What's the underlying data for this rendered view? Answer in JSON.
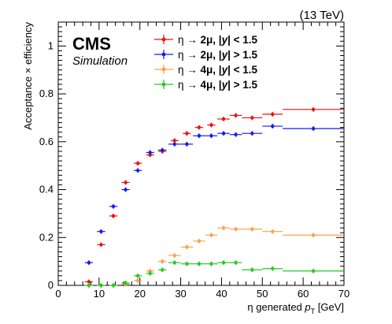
{
  "header": {
    "energy": "(13 TeV)",
    "experiment": "CMS",
    "tag": "Simulation"
  },
  "colors": {
    "eta_2mu_central": "#ee1111",
    "eta_2mu_forward": "#1a1aee",
    "eta_4mu_central": "#ffa04d",
    "eta_4mu_forward": "#22cc22"
  },
  "chart_data": {
    "type": "scatter",
    "title": "",
    "xlabel": "η generated p_T [GeV]",
    "ylabel": "Acceptance × efficiency",
    "xlim": [
      0,
      70
    ],
    "ylim": [
      0,
      1.1
    ],
    "x_ticks": [
      "0",
      "10",
      "20",
      "30",
      "40",
      "50",
      "60",
      "70"
    ],
    "y_ticks": [
      "0",
      "0.2",
      "0.4",
      "0.6",
      "0.8",
      "1"
    ],
    "grid": false,
    "legend_position": "top-right",
    "series": [
      {
        "name": "η → 2μ, |y| < 1.5",
        "legend": {
          "pre": "η → ",
          "mid": "2μ, |",
          "y": "y",
          "post": "| < 1.5"
        },
        "color_key": "eta_2mu_central",
        "points": [
          {
            "x": 7.5,
            "xerr": 1.0,
            "y": 0.015
          },
          {
            "x": 10.5,
            "xerr": 1.0,
            "y": 0.17
          },
          {
            "x": 13.5,
            "xerr": 1.0,
            "y": 0.29
          },
          {
            "x": 16.5,
            "xerr": 1.0,
            "y": 0.43
          },
          {
            "x": 19.5,
            "xerr": 1.0,
            "y": 0.51
          },
          {
            "x": 22.5,
            "xerr": 1.0,
            "y": 0.545
          },
          {
            "x": 25.5,
            "xerr": 1.0,
            "y": 0.56
          },
          {
            "x": 28.5,
            "xerr": 1.0,
            "y": 0.605
          },
          {
            "x": 31.5,
            "xerr": 1.0,
            "y": 0.635
          },
          {
            "x": 34.5,
            "xerr": 1.0,
            "y": 0.66
          },
          {
            "x": 37.5,
            "xerr": 1.0,
            "y": 0.67
          },
          {
            "x": 40.5,
            "xerr": 1.5,
            "y": 0.695
          },
          {
            "x": 43.5,
            "xerr": 1.5,
            "y": 0.71
          },
          {
            "x": 47.5,
            "xerr": 2.5,
            "y": 0.7
          },
          {
            "x": 52.5,
            "xerr": 2.5,
            "y": 0.715
          },
          {
            "x": 62.5,
            "xerr": 7.5,
            "y": 0.735
          }
        ]
      },
      {
        "name": "η → 2μ, |y| > 1.5",
        "legend": {
          "pre": "η → ",
          "mid": "2μ, |",
          "y": "y",
          "post": "| > 1.5"
        },
        "color_key": "eta_2mu_forward",
        "points": [
          {
            "x": 7.5,
            "xerr": 1.0,
            "y": 0.095
          },
          {
            "x": 10.5,
            "xerr": 1.0,
            "y": 0.225
          },
          {
            "x": 13.5,
            "xerr": 1.0,
            "y": 0.33
          },
          {
            "x": 16.5,
            "xerr": 1.0,
            "y": 0.4
          },
          {
            "x": 19.5,
            "xerr": 1.0,
            "y": 0.48
          },
          {
            "x": 22.5,
            "xerr": 1.0,
            "y": 0.555
          },
          {
            "x": 25.5,
            "xerr": 1.0,
            "y": 0.565
          },
          {
            "x": 28.5,
            "xerr": 1.5,
            "y": 0.59
          },
          {
            "x": 31.5,
            "xerr": 1.5,
            "y": 0.59
          },
          {
            "x": 34.5,
            "xerr": 1.5,
            "y": 0.625
          },
          {
            "x": 37.5,
            "xerr": 1.5,
            "y": 0.625
          },
          {
            "x": 40.5,
            "xerr": 1.5,
            "y": 0.635
          },
          {
            "x": 43.5,
            "xerr": 1.5,
            "y": 0.63
          },
          {
            "x": 47.5,
            "xerr": 2.5,
            "y": 0.635
          },
          {
            "x": 52.5,
            "xerr": 2.5,
            "y": 0.665
          },
          {
            "x": 62.5,
            "xerr": 7.5,
            "y": 0.655
          }
        ]
      },
      {
        "name": "η → 4μ, |y| < 1.5",
        "legend": {
          "pre": "η → ",
          "mid": "4μ, |",
          "y": "y",
          "post": "| < 1.5"
        },
        "color_key": "eta_4mu_central",
        "points": [
          {
            "x": 7.5,
            "xerr": 1.0,
            "y": 0.0
          },
          {
            "x": 10.5,
            "xerr": 1.0,
            "y": 0.0
          },
          {
            "x": 13.5,
            "xerr": 1.0,
            "y": 0.0
          },
          {
            "x": 16.5,
            "xerr": 1.0,
            "y": 0.005
          },
          {
            "x": 19.5,
            "xerr": 1.0,
            "y": 0.02
          },
          {
            "x": 22.5,
            "xerr": 1.0,
            "y": 0.06
          },
          {
            "x": 25.5,
            "xerr": 1.0,
            "y": 0.1
          },
          {
            "x": 28.5,
            "xerr": 1.5,
            "y": 0.125
          },
          {
            "x": 31.5,
            "xerr": 1.5,
            "y": 0.16
          },
          {
            "x": 34.5,
            "xerr": 1.5,
            "y": 0.185
          },
          {
            "x": 37.5,
            "xerr": 1.5,
            "y": 0.21
          },
          {
            "x": 40.5,
            "xerr": 1.5,
            "y": 0.24
          },
          {
            "x": 43.5,
            "xerr": 1.5,
            "y": 0.235
          },
          {
            "x": 47.5,
            "xerr": 2.5,
            "y": 0.235
          },
          {
            "x": 52.5,
            "xerr": 2.5,
            "y": 0.225
          },
          {
            "x": 62.5,
            "xerr": 7.5,
            "y": 0.21
          }
        ]
      },
      {
        "name": "η → 4μ, |y| > 1.5",
        "legend": {
          "pre": "η → ",
          "mid": "4μ, |",
          "y": "y",
          "post": "| > 1.5"
        },
        "color_key": "eta_4mu_forward",
        "points": [
          {
            "x": 7.5,
            "xerr": 1.0,
            "y": 0.0
          },
          {
            "x": 10.5,
            "xerr": 1.0,
            "y": 0.0
          },
          {
            "x": 13.5,
            "xerr": 1.0,
            "y": 0.0
          },
          {
            "x": 16.5,
            "xerr": 1.0,
            "y": 0.01
          },
          {
            "x": 19.5,
            "xerr": 1.0,
            "y": 0.04
          },
          {
            "x": 22.5,
            "xerr": 1.0,
            "y": 0.05
          },
          {
            "x": 25.5,
            "xerr": 1.0,
            "y": 0.065
          },
          {
            "x": 28.5,
            "xerr": 1.5,
            "y": 0.095
          },
          {
            "x": 31.5,
            "xerr": 1.5,
            "y": 0.09
          },
          {
            "x": 34.5,
            "xerr": 1.5,
            "y": 0.09
          },
          {
            "x": 37.5,
            "xerr": 1.5,
            "y": 0.09
          },
          {
            "x": 40.5,
            "xerr": 1.5,
            "y": 0.095
          },
          {
            "x": 43.5,
            "xerr": 1.5,
            "y": 0.095
          },
          {
            "x": 47.5,
            "xerr": 2.5,
            "y": 0.065
          },
          {
            "x": 52.5,
            "xerr": 2.5,
            "y": 0.07
          },
          {
            "x": 62.5,
            "xerr": 7.5,
            "y": 0.06
          }
        ]
      }
    ]
  }
}
